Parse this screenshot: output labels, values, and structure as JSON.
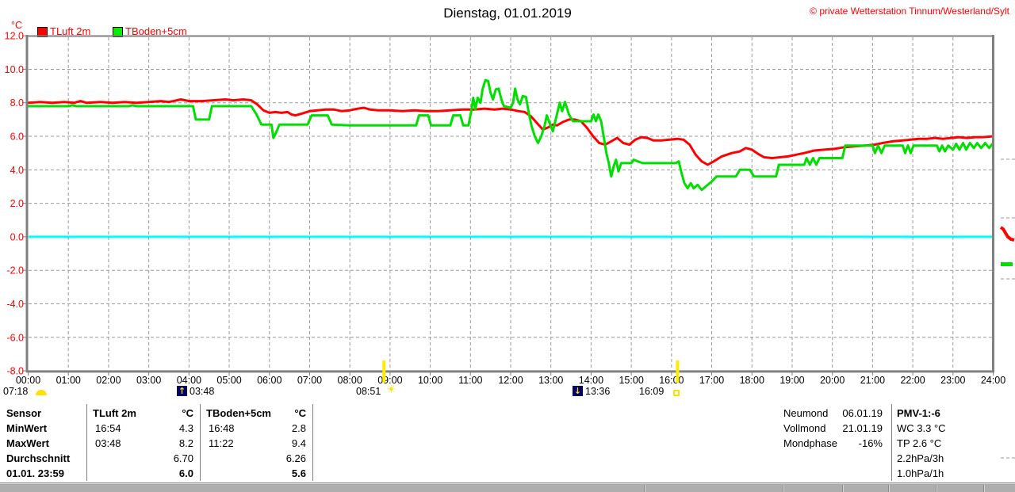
{
  "header": {
    "title": "Dienstag, 01.01.2019",
    "copyright": "© private Wetterstation Tinnum/Westerland/Sylt"
  },
  "legend": {
    "unit_label": "°C",
    "series": [
      {
        "label": "TLuft 2m",
        "color": "#ff0000"
      },
      {
        "label": "TBoden+5cm",
        "color": "#00e000"
      }
    ]
  },
  "axis_markers": {
    "dawn_time": "07:18",
    "moonrise_time": "03:48",
    "sunrise_time": "08:51",
    "moonset_time": "13:36",
    "sunset_time": "16:09"
  },
  "stats_table": {
    "header": {
      "label": "Sensor",
      "s1_name": "TLuft 2m",
      "s1_unit": "°C",
      "s2_name": "TBoden+5cm",
      "s2_unit": "°C"
    },
    "min": {
      "label": "MinWert",
      "s1_time": "16:54",
      "s1_value": "4.3",
      "s2_time": "16:48",
      "s2_value": "2.8"
    },
    "max": {
      "label": "MaxWert",
      "s1_time": "03:48",
      "s1_value": "8.2",
      "s2_time": "11:22",
      "s2_value": "9.4"
    },
    "avg": {
      "label": "Durchschnitt",
      "s1_value": "6.70",
      "s2_value": "6.26"
    },
    "last": {
      "label": "01.01. 23:59",
      "s1_value": "6.0",
      "s2_value": "5.6"
    }
  },
  "moon_info": {
    "new_moon": {
      "label": "Neumond",
      "value": "06.01.19"
    },
    "full_moon": {
      "label": "Vollmond",
      "value": "21.01.19"
    },
    "phase": {
      "label": "Mondphase",
      "value": "-16%"
    }
  },
  "conditions": {
    "pmv": "PMV-1:-6",
    "windchill": "WC 3.3 °C",
    "dewpoint": "TP 2.6 °C",
    "pressure_3h": "2.2hPa/3h",
    "pressure_1h": "1.0hPa/1h"
  },
  "chart_data": {
    "type": "line",
    "title": "Dienstag, 01.01.2019",
    "xlabel": "",
    "ylabel": "°C",
    "ylim": [
      -8.0,
      12.0
    ],
    "xlim_hours": [
      0,
      24
    ],
    "grid": true,
    "legend_position": "top-left",
    "zero_line_color": "#00ffff",
    "axis_label_color": "#ff0000",
    "ytick_values": [
      12,
      10,
      8,
      6,
      4,
      2,
      0,
      -2,
      -4,
      -6,
      -8
    ],
    "ytick_labels": [
      "12.0",
      "10.0",
      "8.0",
      "6.0",
      "4.0",
      "2.0",
      "0.0",
      "-2.0",
      "-4.0",
      "-6.0",
      "-8.0"
    ],
    "xtick_labels": [
      "00:00",
      "01:00",
      "02:00",
      "03:00",
      "04:00",
      "05:00",
      "06:00",
      "07:00",
      "08:00",
      "09:00",
      "10:00",
      "11:00",
      "12:00",
      "13:00",
      "14:00",
      "15:00",
      "16:00",
      "17:00",
      "18:00",
      "19:00",
      "20:00",
      "21:00",
      "22:00",
      "23:00",
      "24:00"
    ],
    "sun_lines_hours": [
      8.85,
      16.15
    ],
    "series": [
      {
        "name": "TLuft 2m",
        "color": "#ff0000",
        "points": [
          [
            0,
            8.0
          ],
          [
            0.3,
            8.05
          ],
          [
            0.6,
            8.0
          ],
          [
            0.9,
            8.05
          ],
          [
            1.15,
            8.0
          ],
          [
            1.3,
            8.1
          ],
          [
            1.45,
            8.0
          ],
          [
            1.8,
            8.05
          ],
          [
            2.1,
            8.0
          ],
          [
            2.4,
            8.05
          ],
          [
            2.7,
            8.0
          ],
          [
            3.0,
            8.05
          ],
          [
            3.3,
            8.1
          ],
          [
            3.5,
            8.05
          ],
          [
            3.7,
            8.15
          ],
          [
            3.8,
            8.2
          ],
          [
            4.0,
            8.1
          ],
          [
            4.3,
            8.1
          ],
          [
            4.6,
            8.15
          ],
          [
            4.9,
            8.2
          ],
          [
            5.1,
            8.15
          ],
          [
            5.35,
            8.2
          ],
          [
            5.55,
            8.15
          ],
          [
            5.7,
            7.9
          ],
          [
            5.85,
            7.55
          ],
          [
            6.0,
            7.4
          ],
          [
            6.15,
            7.45
          ],
          [
            6.3,
            7.4
          ],
          [
            6.45,
            7.45
          ],
          [
            6.55,
            7.3
          ],
          [
            6.65,
            7.25
          ],
          [
            6.8,
            7.35
          ],
          [
            7.0,
            7.5
          ],
          [
            7.2,
            7.55
          ],
          [
            7.4,
            7.6
          ],
          [
            7.6,
            7.6
          ],
          [
            7.8,
            7.5
          ],
          [
            8.0,
            7.55
          ],
          [
            8.2,
            7.65
          ],
          [
            8.35,
            7.7
          ],
          [
            8.5,
            7.6
          ],
          [
            8.7,
            7.55
          ],
          [
            9.0,
            7.55
          ],
          [
            9.3,
            7.5
          ],
          [
            9.6,
            7.55
          ],
          [
            9.9,
            7.5
          ],
          [
            10.2,
            7.5
          ],
          [
            10.5,
            7.55
          ],
          [
            10.8,
            7.6
          ],
          [
            11.1,
            7.6
          ],
          [
            11.35,
            7.65
          ],
          [
            11.6,
            7.6
          ],
          [
            11.8,
            7.65
          ],
          [
            12.0,
            7.6
          ],
          [
            12.2,
            7.5
          ],
          [
            12.35,
            7.45
          ],
          [
            12.5,
            7.2
          ],
          [
            12.65,
            6.8
          ],
          [
            12.8,
            6.4
          ],
          [
            12.95,
            6.55
          ],
          [
            13.05,
            6.7
          ],
          [
            13.15,
            6.65
          ],
          [
            13.3,
            6.85
          ],
          [
            13.45,
            7.0
          ],
          [
            13.6,
            7.0
          ],
          [
            13.75,
            6.9
          ],
          [
            13.9,
            6.5
          ],
          [
            14.05,
            6.0
          ],
          [
            14.2,
            5.6
          ],
          [
            14.35,
            5.5
          ],
          [
            14.5,
            5.7
          ],
          [
            14.65,
            5.9
          ],
          [
            14.8,
            5.6
          ],
          [
            14.95,
            5.5
          ],
          [
            15.1,
            5.8
          ],
          [
            15.25,
            5.95
          ],
          [
            15.4,
            5.9
          ],
          [
            15.55,
            5.75
          ],
          [
            15.75,
            5.75
          ],
          [
            15.95,
            5.8
          ],
          [
            16.15,
            5.85
          ],
          [
            16.3,
            5.8
          ],
          [
            16.45,
            5.5
          ],
          [
            16.6,
            4.9
          ],
          [
            16.75,
            4.5
          ],
          [
            16.9,
            4.3
          ],
          [
            17.05,
            4.5
          ],
          [
            17.25,
            4.8
          ],
          [
            17.5,
            5.0
          ],
          [
            17.7,
            5.1
          ],
          [
            17.85,
            5.3
          ],
          [
            18.0,
            5.2
          ],
          [
            18.15,
            4.95
          ],
          [
            18.3,
            4.75
          ],
          [
            18.5,
            4.7
          ],
          [
            18.7,
            4.75
          ],
          [
            18.9,
            4.8
          ],
          [
            19.1,
            4.9
          ],
          [
            19.3,
            5.0
          ],
          [
            19.55,
            5.15
          ],
          [
            19.8,
            5.2
          ],
          [
            20.05,
            5.25
          ],
          [
            20.3,
            5.35
          ],
          [
            20.55,
            5.4
          ],
          [
            20.8,
            5.45
          ],
          [
            21.05,
            5.5
          ],
          [
            21.25,
            5.6
          ],
          [
            21.5,
            5.7
          ],
          [
            21.75,
            5.75
          ],
          [
            21.95,
            5.8
          ],
          [
            22.15,
            5.85
          ],
          [
            22.35,
            5.85
          ],
          [
            22.55,
            5.9
          ],
          [
            22.75,
            5.85
          ],
          [
            22.95,
            5.9
          ],
          [
            23.15,
            5.95
          ],
          [
            23.35,
            5.9
          ],
          [
            23.55,
            5.95
          ],
          [
            23.75,
            5.95
          ],
          [
            24,
            6.0
          ]
        ]
      },
      {
        "name": "TBoden+5cm",
        "color": "#00e000",
        "points": [
          [
            0,
            7.8
          ],
          [
            1.0,
            7.8
          ],
          [
            1.1,
            7.85
          ],
          [
            1.2,
            7.8
          ],
          [
            2.5,
            7.8
          ],
          [
            2.6,
            7.85
          ],
          [
            2.7,
            7.8
          ],
          [
            4.1,
            7.8
          ],
          [
            4.17,
            7.0
          ],
          [
            4.5,
            7.0
          ],
          [
            4.57,
            7.8
          ],
          [
            5.55,
            7.8
          ],
          [
            5.68,
            7.3
          ],
          [
            5.8,
            6.7
          ],
          [
            6.05,
            6.7
          ],
          [
            6.1,
            5.9
          ],
          [
            6.18,
            6.3
          ],
          [
            6.25,
            6.7
          ],
          [
            6.95,
            6.7
          ],
          [
            7.05,
            7.25
          ],
          [
            7.45,
            7.25
          ],
          [
            7.55,
            6.7
          ],
          [
            8.0,
            6.65
          ],
          [
            9.65,
            6.65
          ],
          [
            9.72,
            7.25
          ],
          [
            9.95,
            7.25
          ],
          [
            10.02,
            6.65
          ],
          [
            10.5,
            6.65
          ],
          [
            10.57,
            7.25
          ],
          [
            10.75,
            7.25
          ],
          [
            10.82,
            6.65
          ],
          [
            10.95,
            6.65
          ],
          [
            11.02,
            7.5
          ],
          [
            11.07,
            8.3
          ],
          [
            11.12,
            7.6
          ],
          [
            11.18,
            8.3
          ],
          [
            11.25,
            8.0
          ],
          [
            11.3,
            8.8
          ],
          [
            11.37,
            9.35
          ],
          [
            11.44,
            9.3
          ],
          [
            11.5,
            8.6
          ],
          [
            11.56,
            8.2
          ],
          [
            11.63,
            8.8
          ],
          [
            11.7,
            8.85
          ],
          [
            11.77,
            8.2
          ],
          [
            11.83,
            7.8
          ],
          [
            11.92,
            7.75
          ],
          [
            12.0,
            7.7
          ],
          [
            12.06,
            8.0
          ],
          [
            12.11,
            8.85
          ],
          [
            12.17,
            8.2
          ],
          [
            12.23,
            7.9
          ],
          [
            12.3,
            8.4
          ],
          [
            12.38,
            8.35
          ],
          [
            12.45,
            7.4
          ],
          [
            12.52,
            6.6
          ],
          [
            12.6,
            6.0
          ],
          [
            12.68,
            5.6
          ],
          [
            12.76,
            6.0
          ],
          [
            12.84,
            6.6
          ],
          [
            12.9,
            7.25
          ],
          [
            12.98,
            6.7
          ],
          [
            13.05,
            6.3
          ],
          [
            13.15,
            7.3
          ],
          [
            13.22,
            8.0
          ],
          [
            13.28,
            7.5
          ],
          [
            13.35,
            8.05
          ],
          [
            13.45,
            7.3
          ],
          [
            13.55,
            6.9
          ],
          [
            14.0,
            6.9
          ],
          [
            14.06,
            7.3
          ],
          [
            14.12,
            6.9
          ],
          [
            14.18,
            7.3
          ],
          [
            14.25,
            6.9
          ],
          [
            14.32,
            5.9
          ],
          [
            14.38,
            5.0
          ],
          [
            14.44,
            4.4
          ],
          [
            14.5,
            3.6
          ],
          [
            14.56,
            4.2
          ],
          [
            14.62,
            4.6
          ],
          [
            14.68,
            3.9
          ],
          [
            14.75,
            4.4
          ],
          [
            15.0,
            4.4
          ],
          [
            15.06,
            4.6
          ],
          [
            15.28,
            4.4
          ],
          [
            16.1,
            4.4
          ],
          [
            16.18,
            4.5
          ],
          [
            16.25,
            3.8
          ],
          [
            16.32,
            3.2
          ],
          [
            16.4,
            2.9
          ],
          [
            16.48,
            3.2
          ],
          [
            16.55,
            2.9
          ],
          [
            16.65,
            3.1
          ],
          [
            16.75,
            2.8
          ],
          [
            16.85,
            3.0
          ],
          [
            17.0,
            3.3
          ],
          [
            17.12,
            3.6
          ],
          [
            17.6,
            3.6
          ],
          [
            17.7,
            4.0
          ],
          [
            17.95,
            4.0
          ],
          [
            18.05,
            3.6
          ],
          [
            18.6,
            3.6
          ],
          [
            18.67,
            4.3
          ],
          [
            19.3,
            4.3
          ],
          [
            19.36,
            4.7
          ],
          [
            19.44,
            4.3
          ],
          [
            19.52,
            4.7
          ],
          [
            19.6,
            4.3
          ],
          [
            19.68,
            4.7
          ],
          [
            20.25,
            4.7
          ],
          [
            20.32,
            5.45
          ],
          [
            21.0,
            5.45
          ],
          [
            21.06,
            5.0
          ],
          [
            21.14,
            5.45
          ],
          [
            21.22,
            5.0
          ],
          [
            21.3,
            5.45
          ],
          [
            21.75,
            5.45
          ],
          [
            21.81,
            5.0
          ],
          [
            21.88,
            5.45
          ],
          [
            21.95,
            5.0
          ],
          [
            22.02,
            5.45
          ],
          [
            22.6,
            5.45
          ],
          [
            22.66,
            5.1
          ],
          [
            22.73,
            5.45
          ],
          [
            22.8,
            5.1
          ],
          [
            22.88,
            5.45
          ],
          [
            23.0,
            5.2
          ],
          [
            23.08,
            5.55
          ],
          [
            23.16,
            5.2
          ],
          [
            23.25,
            5.6
          ],
          [
            23.33,
            5.2
          ],
          [
            23.42,
            5.6
          ],
          [
            23.52,
            5.3
          ],
          [
            23.6,
            5.6
          ],
          [
            23.7,
            5.3
          ],
          [
            23.8,
            5.6
          ],
          [
            23.9,
            5.3
          ],
          [
            24,
            5.6
          ]
        ]
      }
    ],
    "artifacts": {
      "dash_stubs_y": [
        201,
        275,
        352,
        578
      ],
      "red_fragment": [
        [
          1262,
          287
        ],
        [
          1265,
          289
        ],
        [
          1268,
          294
        ],
        [
          1271,
          299
        ],
        [
          1275,
          302
        ],
        [
          1279,
          303
        ]
      ],
      "green_fragment": {
        "x": 1262,
        "y": 331,
        "w": 15,
        "h": 5
      }
    }
  }
}
